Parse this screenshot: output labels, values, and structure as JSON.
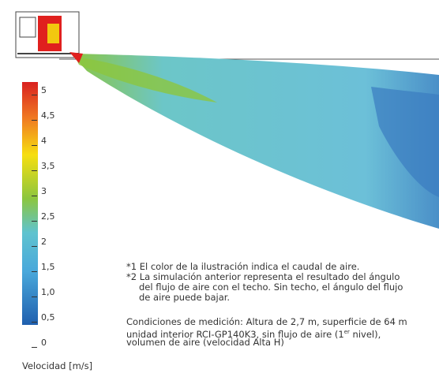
{
  "figure": {
    "colorbar": {
      "ticks": [
        "5",
        "4,5",
        "4",
        "3,5",
        "3",
        "2,5",
        "2",
        "1,5",
        "1,0",
        "0,5",
        "0"
      ],
      "label": "Velocidad [m/s]"
    },
    "notes": [
      "*1 El color de la ilustración indica el caudal de aire.",
      "*2 La simulación anterior representa el resultado del ángulo",
      "del flujo de aire con el techo. Sin techo, el ángulo del flujo",
      "de aire puede bajar."
    ],
    "conditions": {
      "line1": "Condiciones de medición: Altura de 2,7 m, superficie de 64 m",
      "line2": "unidad interior RCI-GP140K3, sin flujo de aire (1",
      "line2_sup": "er",
      "line2_end": " nivel),",
      "line3": "volumen de aire (velocidad Alta H)"
    }
  }
}
